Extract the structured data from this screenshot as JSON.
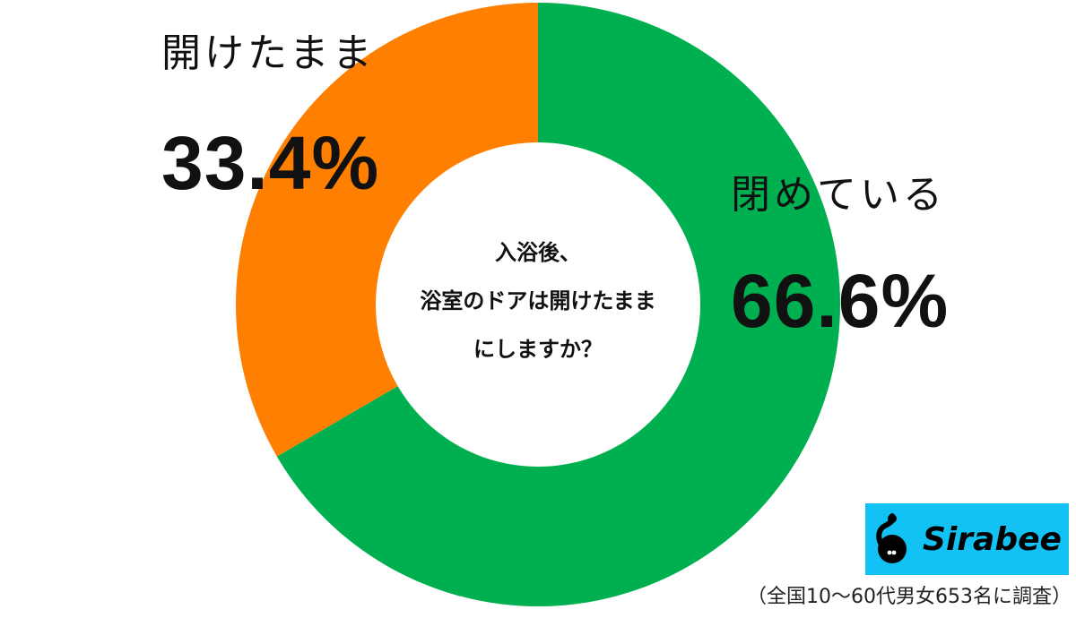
{
  "chart_data": {
    "type": "pie",
    "subtype": "donut",
    "title": "入浴後、浴室のドアは開けたままにしますか？",
    "categories": [
      "開けたまま",
      "閉めている"
    ],
    "values": [
      33.4,
      66.6
    ],
    "unit": "%",
    "colors": [
      "#ff7f00",
      "#00b050"
    ],
    "start_angle": "top (12 o'clock)",
    "direction": "orange counter-clockwise from top, green clockwise from top",
    "legend": "none (inline labels)",
    "note": "（全国10〜60代男女653名に調査）"
  },
  "center": {
    "question_lines": [
      "入浴後、",
      "浴室のドアは開けたまま",
      "にしますか？"
    ]
  },
  "labels": {
    "open": {
      "name": "開けたまま",
      "pct": "33.4%"
    },
    "closed": {
      "name": "閉めている",
      "pct": "66.6%"
    }
  },
  "logo": {
    "wordmark": "Sirabee",
    "icon": "sirabee-bee-icon",
    "background": "#12c2f4"
  },
  "footnote": "（全国10〜60代男女653名に調査）"
}
